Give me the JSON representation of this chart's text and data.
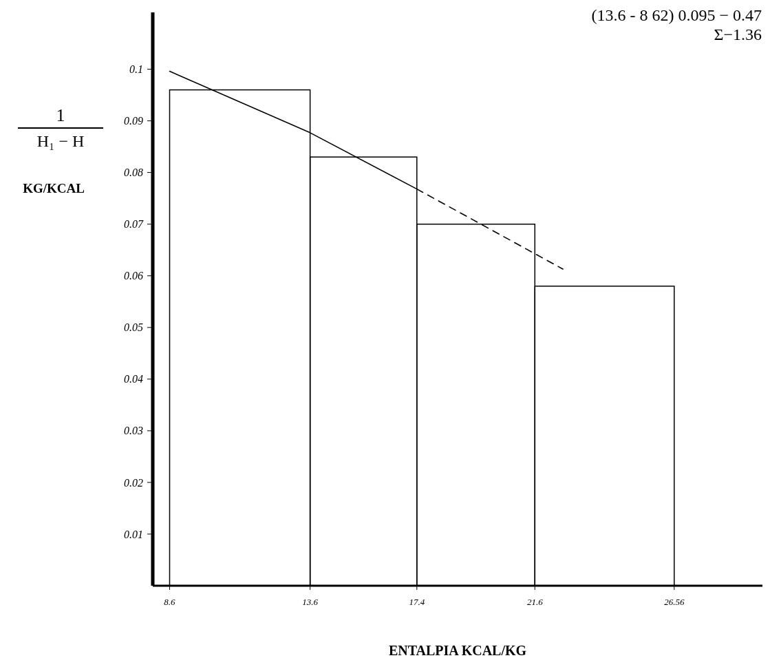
{
  "chart_data": {
    "type": "histogram",
    "xlabel": "ENTALPIA KCAL/KG",
    "ylabel": "1\nH₁ − H\nKG/KCAL",
    "annotations": [
      "(13.6  -  8 62) 0.095 − 0.47",
      "Σ−1.36"
    ],
    "bins": [
      8.6,
      13.6,
      17.4,
      21.6,
      26.56
    ],
    "values": [
      0.096,
      0.083,
      0.07,
      0.058
    ],
    "color": "#000000",
    "series": [
      {
        "type": "line",
        "color": "#000000",
        "line_style": "solid",
        "x": [
          8.6,
          13.6,
          17.4
        ],
        "values": [
          0.0996,
          0.0877,
          0.0768
        ]
      },
      {
        "type": "line",
        "color": "#000000",
        "line_style": "dashed",
        "x": [
          17.4,
          22.6
        ],
        "values": [
          0.0768,
          0.0613
        ]
      }
    ],
    "xlim": [
      8,
      29.7
    ],
    "xticks": [
      8.6,
      13.6,
      17.4,
      21.6,
      26.56
    ],
    "ylim": [
      0,
      0.111
    ],
    "yticks": [
      0.01,
      0.02,
      0.03,
      0.04,
      0.05,
      0.06,
      0.07,
      0.08,
      0.09,
      0.1
    ],
    "marker": "none"
  }
}
